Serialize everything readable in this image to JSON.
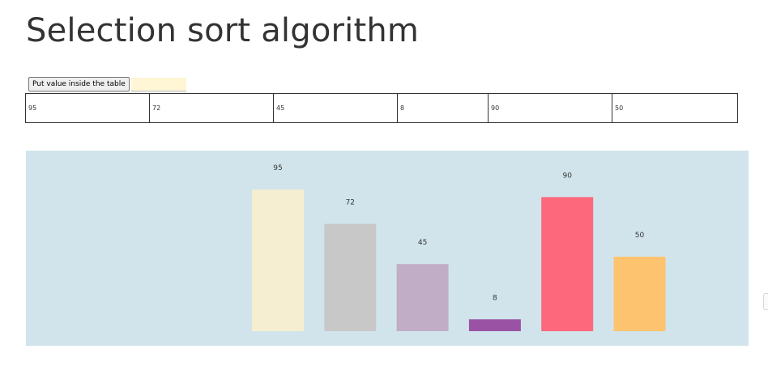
{
  "page": {
    "title": "Selection sort algorithm"
  },
  "controls": {
    "button_label": "Put value inside the table",
    "input_value": ""
  },
  "table": {
    "cells": [
      "95",
      "72",
      "45",
      "8",
      "90",
      "50"
    ]
  },
  "chart_data": {
    "type": "bar",
    "categories": [
      "95",
      "72",
      "45",
      "8",
      "90",
      "50"
    ],
    "values": [
      95,
      72,
      45,
      8,
      90,
      50
    ],
    "data_labels": [
      "95",
      "72",
      "45",
      "8",
      "90",
      "50"
    ],
    "colors": [
      "#f5eed1",
      "#c8c8c8",
      "#c1adc6",
      "#9a52a4",
      "#fd687d",
      "#fec36e"
    ],
    "background": "#d1e4ec",
    "title": "",
    "xlabel": "",
    "ylabel": "",
    "grid": false,
    "axes_shown": false
  }
}
